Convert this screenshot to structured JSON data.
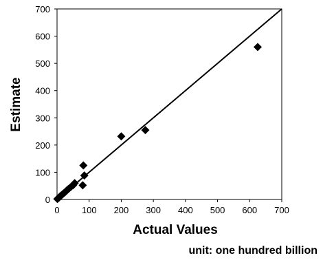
{
  "chart_data": {
    "type": "scatter",
    "xlabel": "Actual Values",
    "ylabel": "Estimate",
    "note": "unit: one hundred billion",
    "xlim": [
      0,
      700
    ],
    "ylim": [
      0,
      700
    ],
    "xticks": [
      0,
      100,
      200,
      300,
      400,
      500,
      600,
      700
    ],
    "yticks": [
      0,
      100,
      200,
      300,
      400,
      500,
      600,
      700
    ],
    "grid": false,
    "legend": "none",
    "marker": "diamond",
    "marker_color": "#000000",
    "reference_line": {
      "from": [
        0,
        0
      ],
      "to": [
        700,
        700
      ]
    },
    "points": [
      {
        "x": 1,
        "y": 2
      },
      {
        "x": 3,
        "y": 4
      },
      {
        "x": 5,
        "y": 6
      },
      {
        "x": 7,
        "y": 8
      },
      {
        "x": 10,
        "y": 12
      },
      {
        "x": 13,
        "y": 15
      },
      {
        "x": 16,
        "y": 18
      },
      {
        "x": 20,
        "y": 22
      },
      {
        "x": 25,
        "y": 27
      },
      {
        "x": 30,
        "y": 33
      },
      {
        "x": 35,
        "y": 38
      },
      {
        "x": 42,
        "y": 45
      },
      {
        "x": 50,
        "y": 52
      },
      {
        "x": 55,
        "y": 60
      },
      {
        "x": 80,
        "y": 52
      },
      {
        "x": 85,
        "y": 88
      },
      {
        "x": 82,
        "y": 125
      },
      {
        "x": 200,
        "y": 232
      },
      {
        "x": 275,
        "y": 255
      },
      {
        "x": 625,
        "y": 560
      }
    ]
  }
}
